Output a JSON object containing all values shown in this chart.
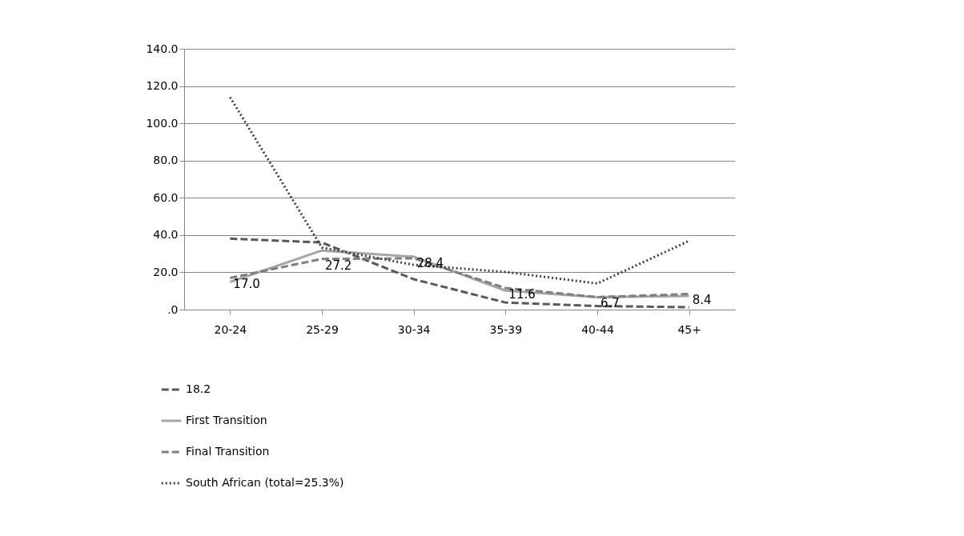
{
  "chart_data": {
    "type": "line",
    "categories": [
      "20-24",
      "25-29",
      "30-34",
      "35-39",
      "40-44",
      "45+"
    ],
    "series": [
      {
        "name": "18.2",
        "color": "#595959",
        "line_style": "dashed",
        "values": [
          38.1,
          36,
          16.3,
          3.8,
          1.9,
          1.3
        ]
      },
      {
        "name": "First Transition",
        "color": "#a6a6a6",
        "line_style": "solid",
        "values": [
          14.8,
          31.7,
          28.4,
          10.2,
          6.7,
          7.3
        ],
        "value_labels": [
          null,
          null,
          "28.4",
          null,
          null,
          null
        ]
      },
      {
        "name": "Final Transition",
        "color": "#7f7f7f",
        "line_style": "dashed",
        "values": [
          17.0,
          27.2,
          27.5,
          11.6,
          6.7,
          8.4
        ],
        "value_labels": [
          "17.0",
          "27.2",
          null,
          "11.6",
          "6.7",
          "8.4"
        ]
      },
      {
        "name": "South African (total=25.3%)",
        "color": "#404040",
        "line_style": "dotted",
        "values": [
          114,
          33.3,
          24,
          20.2,
          14,
          36.9
        ]
      }
    ],
    "ylim": [
      0,
      140
    ],
    "yticks": [
      {
        "value": 0,
        "label": ".0"
      },
      {
        "value": 20,
        "label": "20.0"
      },
      {
        "value": 40,
        "label": "40.0"
      },
      {
        "value": 60,
        "label": "60.0"
      },
      {
        "value": 80,
        "label": "80.0"
      },
      {
        "value": 100,
        "label": "100.0"
      },
      {
        "value": 120,
        "label": "120.0"
      },
      {
        "value": 140,
        "label": "140.0"
      }
    ],
    "grid": "y",
    "legend": "bottom left",
    "marker": "none"
  }
}
